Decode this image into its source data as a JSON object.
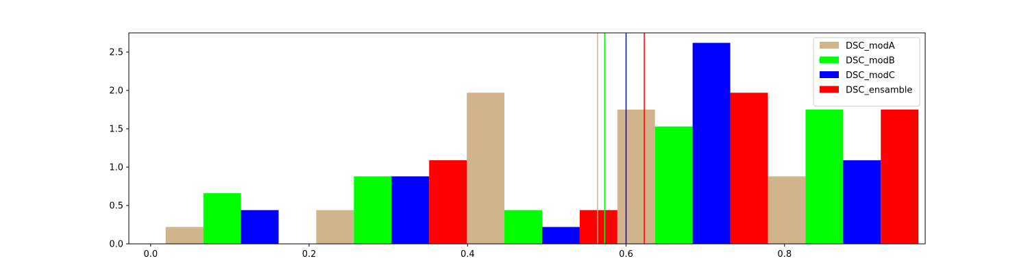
{
  "chart_data": {
    "type": "bar",
    "title": "",
    "xlabel": "",
    "ylabel": "",
    "xlim": [
      -0.0275,
      0.9775
    ],
    "ylim": [
      0,
      2.75
    ],
    "xticks": [
      0.0,
      0.2,
      0.4,
      0.6,
      0.8
    ],
    "xtick_labels": [
      "0.0",
      "0.2",
      "0.4",
      "0.6",
      "0.8"
    ],
    "yticks": [
      0.0,
      0.5,
      1.0,
      1.5,
      2.0,
      2.5
    ],
    "ytick_labels": [
      "0.0",
      "0.5",
      "1.0",
      "1.5",
      "2.0",
      "2.5"
    ],
    "grid": false,
    "legend_position": "top-right",
    "bin_edges": [
      0.019,
      0.209,
      0.399,
      0.589,
      0.779,
      0.969
    ],
    "series": [
      {
        "name": "DSC_modA",
        "color": "#d2b48c",
        "values": [
          0.22,
          0.44,
          1.97,
          1.75,
          0.88
        ],
        "vline": 0.564
      },
      {
        "name": "DSC_modB",
        "color": "#00ff00",
        "values": [
          0.66,
          0.88,
          0.44,
          1.53,
          1.75
        ],
        "vline": 0.573
      },
      {
        "name": "DSC_modC",
        "color": "#0000ff",
        "values": [
          0.44,
          0.88,
          0.22,
          2.62,
          1.09
        ],
        "vline": 0.6
      },
      {
        "name": "DSC_ensamble",
        "color": "#ff0000",
        "values": [
          0.0,
          1.09,
          0.44,
          1.97,
          1.75
        ],
        "vline": 0.623
      }
    ]
  }
}
